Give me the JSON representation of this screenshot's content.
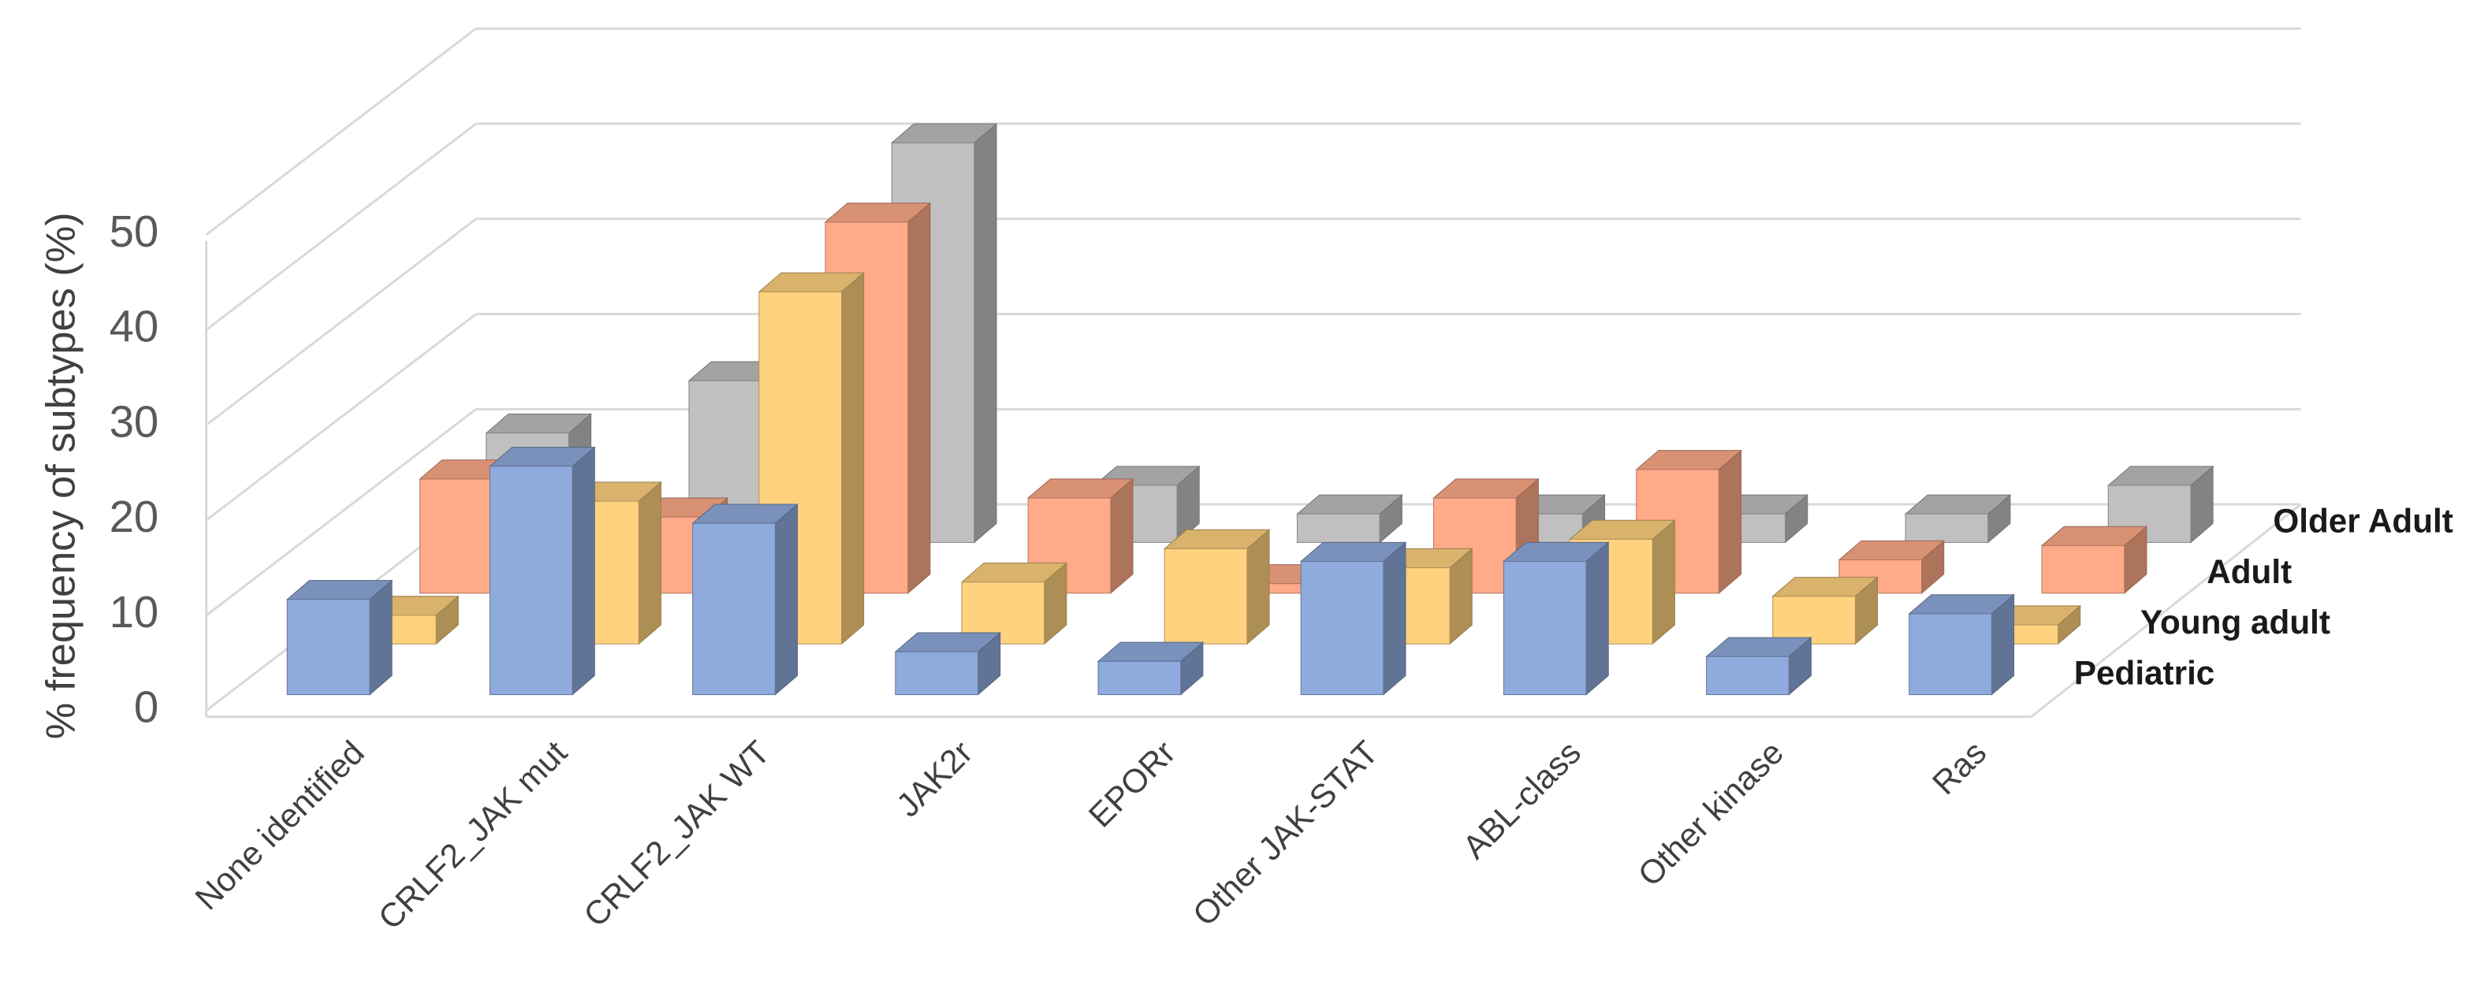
{
  "chart_data": {
    "type": "bar3d",
    "y_label": "% frequency of  subtypes (%)",
    "categories": [
      "None identified",
      "CRLF2_JAK mut",
      "CRLF2_JAK WT",
      "JAK2r",
      "EPORr",
      "Other JAK-STAT",
      "ABL-class",
      "Other kinase",
      "Ras"
    ],
    "series": [
      {
        "name": "Pediatric",
        "color": "#8faadc",
        "values": [
          10,
          24,
          18,
          4.5,
          3.5,
          14,
          14,
          4,
          8.5
        ]
      },
      {
        "name": "Young adult",
        "color": "#ffd27f",
        "values": [
          3,
          15,
          37,
          6.5,
          10,
          8,
          11,
          5,
          2
        ]
      },
      {
        "name": "Adult",
        "color": "#ffaa88",
        "values": [
          12,
          8,
          39,
          10,
          1,
          10,
          13,
          3.5,
          5
        ]
      },
      {
        "name": "Older Adult",
        "color": "#c0c0c0",
        "values": [
          11.5,
          17,
          42,
          6,
          3,
          3,
          3,
          3,
          6
        ]
      }
    ],
    "ylim": [
      0,
      50
    ],
    "yticks": [
      0,
      10,
      20,
      30,
      40,
      50
    ],
    "grid": true
  }
}
